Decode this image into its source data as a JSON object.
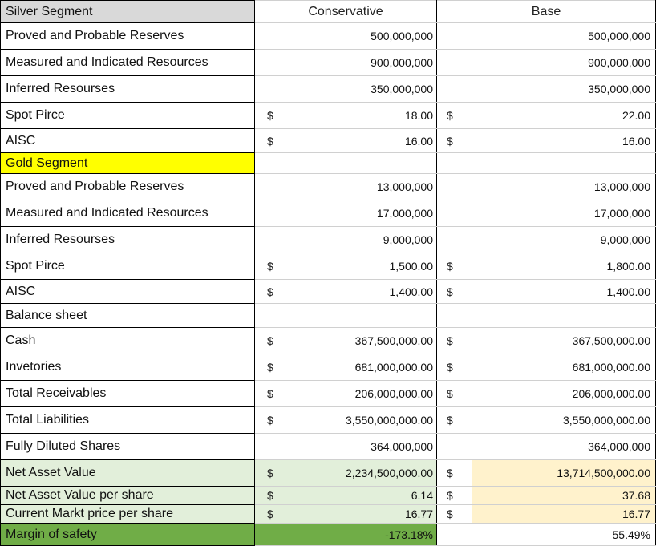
{
  "columns": {
    "c1": "Silver Segment",
    "conservative": "Conservative",
    "base": "Base"
  },
  "rows": [
    {
      "label": "Proved and Probable Reserves",
      "cons_dollar": "",
      "cons_value": "500,000,000",
      "base_dollar": "",
      "base_value": "500,000,000"
    },
    {
      "label": "Measured and Indicated Resources",
      "cons_dollar": "",
      "cons_value": "900,000,000",
      "base_dollar": "",
      "base_value": "900,000,000"
    },
    {
      "label": "Inferred Resourses",
      "cons_dollar": "",
      "cons_value": "350,000,000",
      "base_dollar": "",
      "base_value": "350,000,000"
    },
    {
      "label": "Spot Pirce",
      "cons_dollar": "$",
      "cons_value": "18.00",
      "base_dollar": "$",
      "base_value": "22.00"
    },
    {
      "label": "AISC",
      "cons_dollar": "$",
      "cons_value": "16.00",
      "base_dollar": "$",
      "base_value": "16.00"
    },
    {
      "label": "Gold Segment",
      "cons_dollar": "",
      "cons_value": "",
      "base_dollar": "",
      "base_value": ""
    },
    {
      "label": "Proved and Probable Reserves",
      "cons_dollar": "",
      "cons_value": "13,000,000",
      "base_dollar": "",
      "base_value": "13,000,000"
    },
    {
      "label": "Measured and Indicated Resources",
      "cons_dollar": "",
      "cons_value": "17,000,000",
      "base_dollar": "",
      "base_value": "17,000,000"
    },
    {
      "label": "Inferred Resourses",
      "cons_dollar": "",
      "cons_value": "9,000,000",
      "base_dollar": "",
      "base_value": "9,000,000"
    },
    {
      "label": "Spot Pirce",
      "cons_dollar": "$",
      "cons_value": "1,500.00",
      "base_dollar": "$",
      "base_value": "1,800.00"
    },
    {
      "label": "AISC",
      "cons_dollar": "$",
      "cons_value": "1,400.00",
      "base_dollar": "$",
      "base_value": "1,400.00"
    },
    {
      "label": "Balance sheet",
      "cons_dollar": "",
      "cons_value": "",
      "base_dollar": "",
      "base_value": ""
    },
    {
      "label": "Cash",
      "cons_dollar": "$",
      "cons_value": "367,500,000.00",
      "base_dollar": "$",
      "base_value": "367,500,000.00"
    },
    {
      "label": "Invetories",
      "cons_dollar": "$",
      "cons_value": "681,000,000.00",
      "base_dollar": "$",
      "base_value": "681,000,000.00"
    },
    {
      "label": "Total Receivables",
      "cons_dollar": "$",
      "cons_value": "206,000,000.00",
      "base_dollar": "$",
      "base_value": "206,000,000.00"
    },
    {
      "label": "Total Liabilities",
      "cons_dollar": "$",
      "cons_value": "3,550,000,000.00",
      "base_dollar": "$",
      "base_value": "3,550,000,000.00"
    },
    {
      "label": "Fully Diluted Shares",
      "cons_dollar": "",
      "cons_value": "364,000,000",
      "base_dollar": "",
      "base_value": "364,000,000"
    },
    {
      "label": "Net Asset Value",
      "cons_dollar": "$",
      "cons_value": "2,234,500,000.00",
      "base_dollar": "$",
      "base_value": "13,714,500,000.00"
    },
    {
      "label": "Net Asset Value per share",
      "cons_dollar": "$",
      "cons_value": "6.14",
      "base_dollar": "$",
      "base_value": "37.68"
    },
    {
      "label": "Current Markt price per share",
      "cons_dollar": "$",
      "cons_value": "16.77",
      "base_dollar": "$",
      "base_value": "16.77"
    },
    {
      "label": "Margin of safety",
      "cons_dollar": "",
      "cons_value": "-173.18%",
      "base_dollar": "",
      "base_value": "55.49%"
    }
  ],
  "colors": {
    "header_gray": "#d9d9d9",
    "gold_yellow": "#ffff00",
    "nav_light_green": "#e2efda",
    "nav_peach": "#fff2cc",
    "margin_green": "#70ad47"
  }
}
